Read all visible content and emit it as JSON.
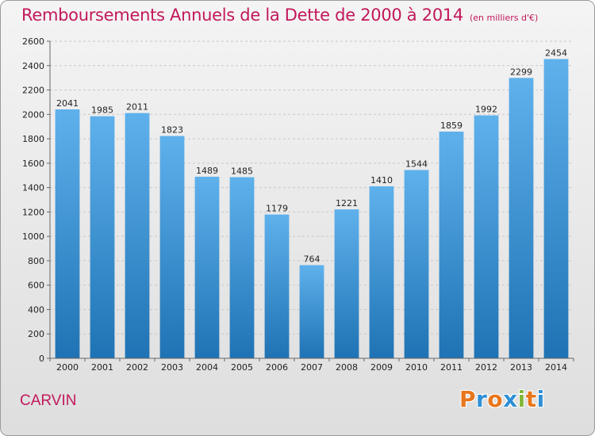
{
  "header": {
    "title": "Remboursements Annuels de la Dette de 2000 à 2014",
    "unit": "(en milliers d'€)"
  },
  "footer": {
    "commune": "CARVIN",
    "logo_letters": [
      "P",
      "r",
      "o",
      "x",
      "i",
      "t",
      "i"
    ]
  },
  "colors": {
    "accent": "#c2185b",
    "bar_light": "#5fb1ec",
    "bar_dark": "#1f73b4",
    "logo": [
      "#e8761c",
      "#2e8fd6",
      "#e8761c",
      "#2e8fd6",
      "#82b83b",
      "#e8761c",
      "#2e8fd6"
    ]
  },
  "chart_data": {
    "type": "bar",
    "title": "Remboursements Annuels de la Dette de 2000 à 2014",
    "ylabel": "en milliers d'€",
    "xlabel": "",
    "categories": [
      "2000",
      "2001",
      "2002",
      "2003",
      "2004",
      "2005",
      "2006",
      "2007",
      "2008",
      "2009",
      "2010",
      "2011",
      "2012",
      "2013",
      "2014"
    ],
    "values": [
      2041,
      1985,
      2011,
      1823,
      1489,
      1485,
      1179,
      764,
      1221,
      1410,
      1544,
      1859,
      1992,
      2299,
      2454
    ],
    "ylim": [
      0,
      2600
    ],
    "yticks": [
      0,
      200,
      400,
      600,
      800,
      1000,
      1200,
      1400,
      1600,
      1800,
      2000,
      2200,
      2400,
      2600
    ],
    "grid": true
  }
}
